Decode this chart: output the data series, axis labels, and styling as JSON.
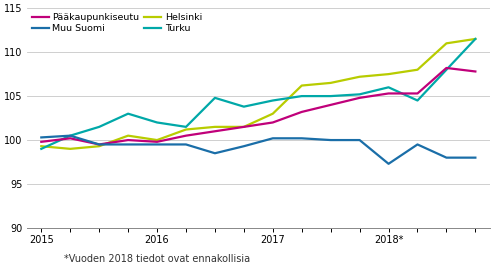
{
  "footnote": "*Vuoden 2018 tiedot ovat ennakollisia",
  "ylim": [
    90,
    115
  ],
  "yticks": [
    90,
    95,
    100,
    105,
    110,
    115
  ],
  "x_labels": [
    "2015",
    "",
    "",
    "",
    "2016",
    "",
    "",
    "",
    "2017",
    "",
    "",
    "",
    "2018*",
    "",
    "",
    ""
  ],
  "series": {
    "Pääkaupunkiseutu": {
      "color": "#c0007a",
      "lw": 1.6,
      "values": [
        99.8,
        100.2,
        99.5,
        100.0,
        99.8,
        100.5,
        101.0,
        101.5,
        102.0,
        103.2,
        104.0,
        104.8,
        105.3,
        105.3,
        108.2,
        107.8
      ]
    },
    "Helsinki": {
      "color": "#b8cc00",
      "lw": 1.6,
      "values": [
        99.3,
        99.0,
        99.3,
        100.5,
        100.0,
        101.2,
        101.5,
        101.5,
        103.0,
        106.2,
        106.5,
        107.2,
        107.5,
        108.0,
        111.0,
        111.5
      ]
    },
    "Muu Suomi": {
      "color": "#1a6ea8",
      "lw": 1.6,
      "values": [
        100.3,
        100.5,
        99.5,
        99.5,
        99.5,
        99.5,
        98.5,
        99.3,
        100.2,
        100.2,
        100.0,
        100.0,
        97.3,
        99.5,
        98.0,
        98.0
      ]
    },
    "Turku": {
      "color": "#00a8a8",
      "lw": 1.6,
      "values": [
        99.0,
        100.5,
        101.5,
        103.0,
        102.0,
        101.5,
        104.8,
        103.8,
        104.5,
        105.0,
        105.0,
        105.2,
        106.0,
        104.5,
        108.0,
        111.5
      ]
    }
  },
  "legend_order": [
    "Pääkaupunkiseutu",
    "Muu Suomi",
    "Helsinki",
    "Turku"
  ],
  "background_color": "#ffffff",
  "grid_color": "#c8c8c8"
}
